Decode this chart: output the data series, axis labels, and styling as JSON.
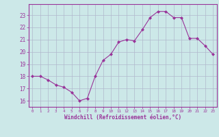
{
  "x": [
    0,
    1,
    2,
    3,
    4,
    5,
    6,
    7,
    8,
    9,
    10,
    11,
    12,
    13,
    14,
    15,
    16,
    17,
    18,
    19,
    20,
    21,
    22,
    23
  ],
  "y": [
    18.0,
    18.0,
    17.7,
    17.3,
    17.1,
    16.7,
    16.0,
    16.2,
    18.0,
    19.3,
    19.8,
    20.8,
    21.0,
    20.9,
    21.8,
    22.8,
    23.3,
    23.3,
    22.8,
    22.8,
    21.1,
    21.1,
    20.5,
    19.8
  ],
  "line_color": "#993399",
  "marker": "D",
  "marker_size": 2,
  "bg_color": "#cce8e8",
  "grid_color": "#b0b8cc",
  "xlabel": "Windchill (Refroidissement éolien,°C)",
  "xlabel_color": "#993399",
  "tick_color": "#993399",
  "label_color": "#993399",
  "ylim": [
    15.5,
    23.9
  ],
  "yticks": [
    16,
    17,
    18,
    19,
    20,
    21,
    22,
    23
  ],
  "xlim": [
    -0.5,
    23.5
  ],
  "xticks": [
    0,
    1,
    2,
    3,
    4,
    5,
    6,
    7,
    8,
    9,
    10,
    11,
    12,
    13,
    14,
    15,
    16,
    17,
    18,
    19,
    20,
    21,
    22,
    23
  ],
  "spine_color": "#993399",
  "linewidth": 0.8
}
